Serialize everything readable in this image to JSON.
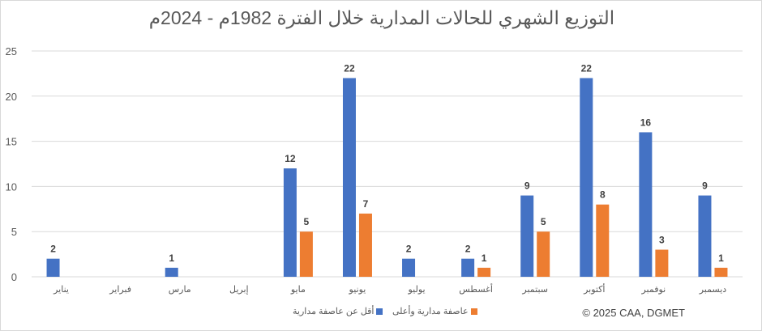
{
  "chart_data": {
    "type": "bar",
    "title": "التوزيع الشهري للحالات المدارية خلال الفترة 1982م - 2024م",
    "categories": [
      "يناير",
      "فبراير",
      "مارس",
      "إبريل",
      "مايو",
      "يونيو",
      "يوليو",
      "أغسطس",
      "سبتمبر",
      "أكتوبر",
      "نوفمبر",
      "ديسمبر"
    ],
    "series": [
      {
        "name": "أقل عن عاصفة مدارية",
        "color": "#4472C4",
        "values": [
          2,
          0,
          1,
          0,
          12,
          22,
          2,
          2,
          9,
          22,
          16,
          9
        ]
      },
      {
        "name": "عاصفة مدارية وأعلى",
        "color": "#ED7D31",
        "values": [
          0,
          0,
          0,
          0,
          5,
          7,
          0,
          1,
          5,
          8,
          3,
          1
        ]
      }
    ],
    "ylim": [
      0,
      25
    ],
    "yticks": [
      0,
      5,
      10,
      15,
      20,
      25
    ],
    "grid": true,
    "legend": "bottom",
    "xlabel": "",
    "ylabel": ""
  },
  "credit": "© 2025 CAA, DGMET"
}
